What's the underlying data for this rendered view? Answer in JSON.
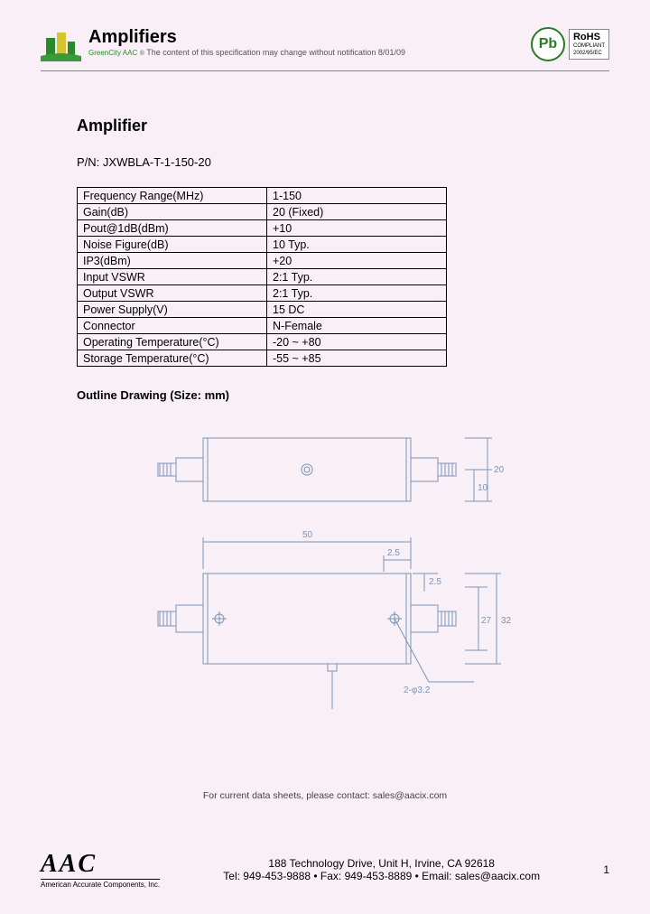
{
  "header": {
    "logo_text": "GreenCity AAC",
    "title": "Amplifiers",
    "subtitle": "The content of this specification may change without notification 8/01/09",
    "pb_label": "Pb",
    "rohs_title": "RoHS",
    "rohs_sub1": "COMPLIANT",
    "rohs_sub2": "2002/95/EC"
  },
  "section": {
    "title": "Amplifier",
    "pn_label": "P/N: JXWBLA-T-1-150-20",
    "outline_title": "Outline Drawing (Size: mm)"
  },
  "specs": {
    "rows": [
      {
        "param": "Frequency Range(MHz)",
        "value": "1-150"
      },
      {
        "param": "Gain(dB)",
        "value": "20 (Fixed)"
      },
      {
        "param": "Pout@1dB(dBm)",
        "value": "+10"
      },
      {
        "param": "Noise Figure(dB)",
        "value": "10 Typ."
      },
      {
        "param": "IP3(dBm)",
        "value": "+20"
      },
      {
        "param": "Input VSWR",
        "value": "2:1 Typ."
      },
      {
        "param": "Output VSWR",
        "value": "2:1 Typ."
      },
      {
        "param": "Power Supply(V)",
        "value": "15 DC"
      },
      {
        "param": "Connector",
        "value": "N-Female"
      },
      {
        "param": "Operating Temperature(°C)",
        "value": "-20 ~ +80"
      },
      {
        "param": "Storage Temperature(°C)",
        "value": "-55 ~ +85"
      }
    ]
  },
  "drawing": {
    "stroke_color": "#7a94b5",
    "text_color": "#7a94b5",
    "dims": {
      "w": "50",
      "h1": "20",
      "h1_half": "10",
      "h2": "27",
      "h3": "32",
      "gap": "2.5",
      "hole": "2-φ3.2"
    }
  },
  "footer": {
    "note": "For current data sheets, please contact: sales@aacix.com",
    "aac": "AAC",
    "aac_sub": "American Accurate Components, Inc.",
    "address": "188 Technology Drive, Unit H, Irvine, CA 92618",
    "contact_line": "Tel: 949-453-9888 • Fax: 949-453-8889 • Email: sales@aacix.com",
    "page": "1"
  }
}
